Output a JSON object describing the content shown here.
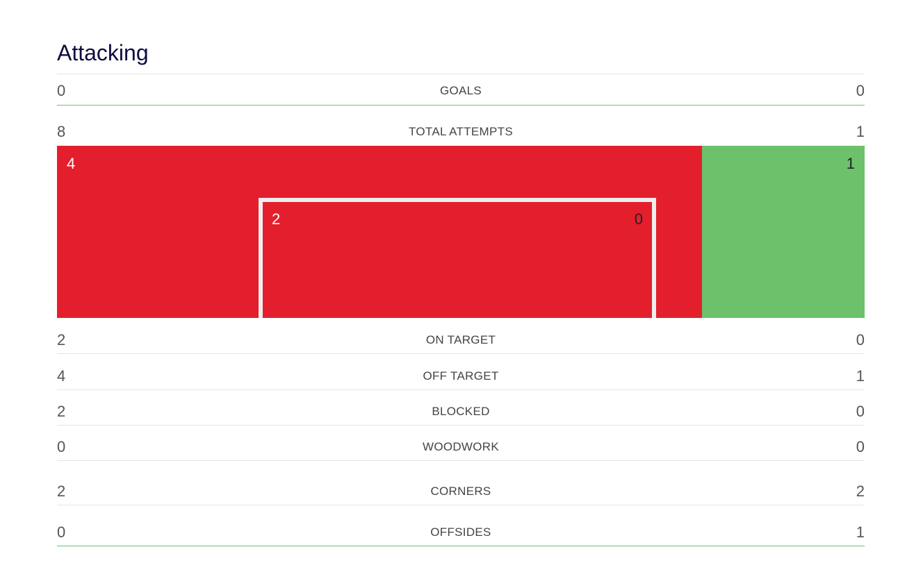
{
  "section": {
    "title": "Attacking"
  },
  "stats": {
    "goals": {
      "label": "GOALS",
      "home": "0",
      "away": "0"
    },
    "total_attempts": {
      "label": "TOTAL ATTEMPTS",
      "home": "8",
      "away": "1"
    },
    "on_target": {
      "label": "ON TARGET",
      "home": "2",
      "away": "0"
    },
    "off_target": {
      "label": "OFF TARGET",
      "home": "4",
      "away": "1"
    },
    "blocked": {
      "label": "BLOCKED",
      "home": "2",
      "away": "0"
    },
    "woodwork": {
      "label": "WOODWORK",
      "home": "0",
      "away": "0"
    },
    "corners": {
      "label": "CORNERS",
      "home": "2",
      "away": "2"
    },
    "offsides": {
      "label": "OFFSIDES",
      "home": "0",
      "away": "1"
    }
  },
  "attempts_graphic": {
    "outside_box": {
      "home": "4",
      "away": "1"
    },
    "inside_box": {
      "home": "2",
      "away": "0"
    },
    "colors": {
      "home": "#e31f2d",
      "away": "#6cc16a",
      "goal_frame": "#eeeeee"
    }
  }
}
